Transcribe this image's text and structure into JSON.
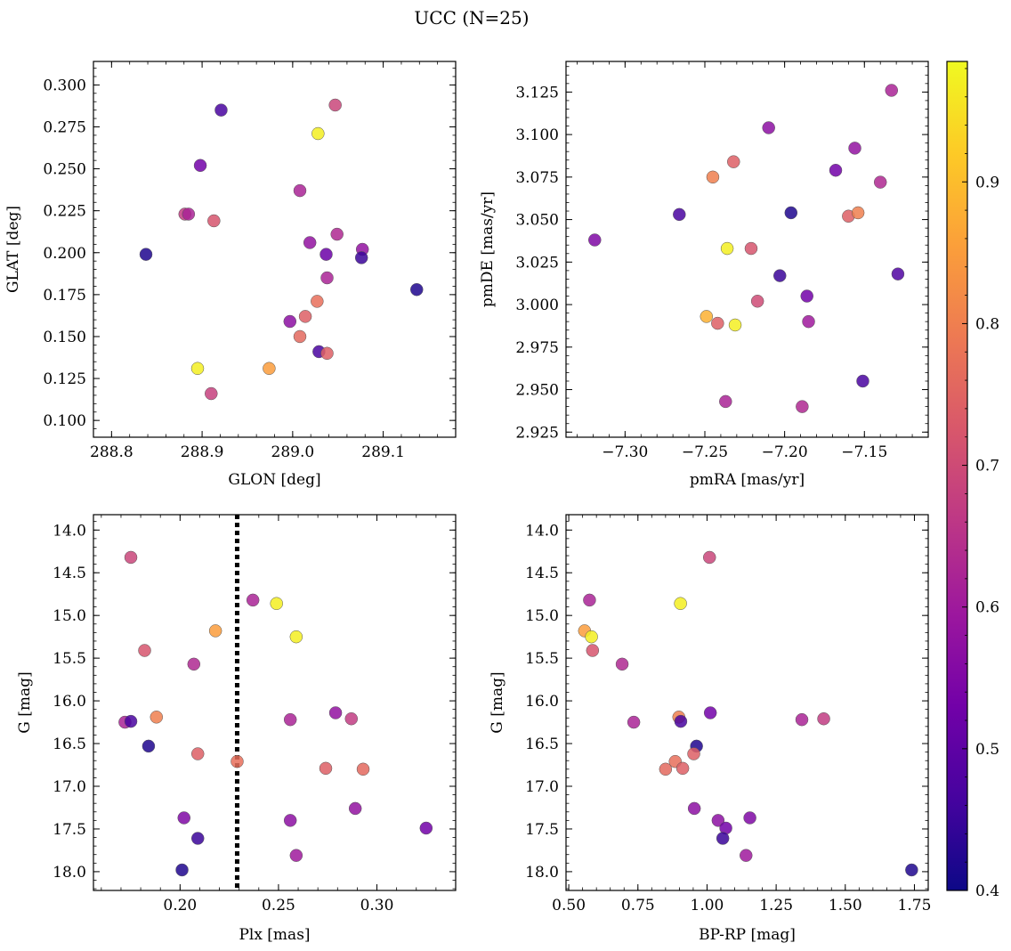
{
  "figure": {
    "title": "UCC (N=25)"
  },
  "colorbar": {
    "vmin": 0.4,
    "vmax": 0.985,
    "ticks": [
      0.4,
      0.5,
      0.6,
      0.7,
      0.8,
      0.9
    ],
    "tick_labels": [
      "0.4",
      "0.5",
      "0.6",
      "0.7",
      "0.8",
      "0.9"
    ],
    "colormap": [
      "#0d0887",
      "#46039f",
      "#7201a8",
      "#9c179e",
      "#bd3786",
      "#d8576b",
      "#ed7953",
      "#fb9f3a",
      "#fdca26",
      "#f0f921"
    ]
  },
  "chart_data": [
    {
      "type": "scatter",
      "xlabel": "GLON [deg]",
      "ylabel": "GLAT [deg]",
      "xlim": [
        288.78,
        289.18
      ],
      "ylim": [
        0.09,
        0.314
      ],
      "xticks": [
        288.8,
        288.9,
        289.0,
        289.1
      ],
      "xtick_labels": [
        "288.8",
        "288.9",
        "289.0",
        "289.1"
      ],
      "yticks": [
        0.1,
        0.125,
        0.15,
        0.175,
        0.2,
        0.225,
        0.25,
        0.275,
        0.3
      ],
      "ytick_labels": [
        "0.100",
        "0.125",
        "0.150",
        "0.175",
        "0.200",
        "0.225",
        "0.250",
        "0.275",
        "0.300"
      ],
      "points": [
        {
          "x": 288.838,
          "y": 0.199,
          "c": 0.42
        },
        {
          "x": 288.921,
          "y": 0.285,
          "c": 0.47
        },
        {
          "x": 289.047,
          "y": 0.288,
          "c": 0.69
        },
        {
          "x": 289.028,
          "y": 0.271,
          "c": 0.97
        },
        {
          "x": 288.898,
          "y": 0.252,
          "c": 0.53
        },
        {
          "x": 289.008,
          "y": 0.237,
          "c": 0.62
        },
        {
          "x": 288.881,
          "y": 0.223,
          "c": 0.67
        },
        {
          "x": 288.885,
          "y": 0.223,
          "c": 0.62
        },
        {
          "x": 288.913,
          "y": 0.219,
          "c": 0.72
        },
        {
          "x": 289.019,
          "y": 0.206,
          "c": 0.58
        },
        {
          "x": 289.049,
          "y": 0.211,
          "c": 0.63
        },
        {
          "x": 289.077,
          "y": 0.202,
          "c": 0.58
        },
        {
          "x": 289.037,
          "y": 0.199,
          "c": 0.52
        },
        {
          "x": 289.076,
          "y": 0.197,
          "c": 0.45
        },
        {
          "x": 289.137,
          "y": 0.178,
          "c": 0.42
        },
        {
          "x": 289.038,
          "y": 0.185,
          "c": 0.62
        },
        {
          "x": 289.027,
          "y": 0.171,
          "c": 0.77
        },
        {
          "x": 289.014,
          "y": 0.162,
          "c": 0.74
        },
        {
          "x": 288.997,
          "y": 0.159,
          "c": 0.57
        },
        {
          "x": 289.008,
          "y": 0.15,
          "c": 0.76
        },
        {
          "x": 289.029,
          "y": 0.141,
          "c": 0.47
        },
        {
          "x": 289.038,
          "y": 0.14,
          "c": 0.74
        },
        {
          "x": 288.895,
          "y": 0.131,
          "c": 0.97
        },
        {
          "x": 288.974,
          "y": 0.131,
          "c": 0.85
        },
        {
          "x": 288.91,
          "y": 0.116,
          "c": 0.68
        }
      ]
    },
    {
      "type": "scatter",
      "xlabel": "pmRA [mas/yr]",
      "ylabel": "pmDE [mas/yr]",
      "xlim": [
        -7.337,
        -7.11
      ],
      "ylim": [
        2.922,
        3.143
      ],
      "xticks": [
        -7.3,
        -7.25,
        -7.2,
        -7.15
      ],
      "xtick_labels": [
        "−7.30",
        "−7.25",
        "−7.20",
        "−7.15"
      ],
      "yticks": [
        2.925,
        2.95,
        2.975,
        3.0,
        3.025,
        3.05,
        3.075,
        3.1,
        3.125
      ],
      "ytick_labels": [
        "2.925",
        "2.950",
        "2.975",
        "3.000",
        "3.025",
        "3.050",
        "3.075",
        "3.100",
        "3.125"
      ],
      "points": [
        {
          "x": -7.319,
          "y": 3.038,
          "c": 0.55
        },
        {
          "x": -7.266,
          "y": 3.053,
          "c": 0.47
        },
        {
          "x": -7.245,
          "y": 3.075,
          "c": 0.8
        },
        {
          "x": -7.232,
          "y": 3.084,
          "c": 0.74
        },
        {
          "x": -7.21,
          "y": 3.104,
          "c": 0.57
        },
        {
          "x": -7.196,
          "y": 3.054,
          "c": 0.42
        },
        {
          "x": -7.203,
          "y": 3.017,
          "c": 0.45
        },
        {
          "x": -7.168,
          "y": 3.079,
          "c": 0.53
        },
        {
          "x": -7.156,
          "y": 3.092,
          "c": 0.58
        },
        {
          "x": -7.133,
          "y": 3.126,
          "c": 0.62
        },
        {
          "x": -7.14,
          "y": 3.072,
          "c": 0.63
        },
        {
          "x": -7.16,
          "y": 3.052,
          "c": 0.74
        },
        {
          "x": -7.154,
          "y": 3.054,
          "c": 0.8
        },
        {
          "x": -7.129,
          "y": 3.018,
          "c": 0.48
        },
        {
          "x": -7.236,
          "y": 3.033,
          "c": 0.97
        },
        {
          "x": -7.221,
          "y": 3.033,
          "c": 0.72
        },
        {
          "x": -7.217,
          "y": 3.002,
          "c": 0.7
        },
        {
          "x": -7.186,
          "y": 3.005,
          "c": 0.53
        },
        {
          "x": -7.185,
          "y": 2.99,
          "c": 0.6
        },
        {
          "x": -7.249,
          "y": 2.993,
          "c": 0.88
        },
        {
          "x": -7.242,
          "y": 2.989,
          "c": 0.74
        },
        {
          "x": -7.231,
          "y": 2.988,
          "c": 0.97
        },
        {
          "x": -7.151,
          "y": 2.955,
          "c": 0.47
        },
        {
          "x": -7.237,
          "y": 2.943,
          "c": 0.62
        },
        {
          "x": -7.189,
          "y": 2.94,
          "c": 0.63
        }
      ]
    },
    {
      "type": "scatter",
      "xlabel": "Plx [mas]",
      "ylabel": "G [mag]",
      "xlim": [
        0.156,
        0.34
      ],
      "ylim": [
        18.22,
        13.82
      ],
      "xticks": [
        0.2,
        0.25,
        0.3
      ],
      "xtick_labels": [
        "0.20",
        "0.25",
        "0.30"
      ],
      "yticks": [
        14.0,
        14.5,
        15.0,
        15.5,
        16.0,
        16.5,
        17.0,
        17.5,
        18.0
      ],
      "ytick_labels": [
        "14.0",
        "14.5",
        "15.0",
        "15.5",
        "16.0",
        "16.5",
        "17.0",
        "17.5",
        "18.0"
      ],
      "vline": 0.229,
      "points": [
        {
          "x": 0.175,
          "y": 14.32,
          "c": 0.69
        },
        {
          "x": 0.237,
          "y": 14.82,
          "c": 0.62
        },
        {
          "x": 0.249,
          "y": 14.86,
          "c": 0.97
        },
        {
          "x": 0.218,
          "y": 15.18,
          "c": 0.85
        },
        {
          "x": 0.259,
          "y": 15.25,
          "c": 0.97
        },
        {
          "x": 0.182,
          "y": 15.41,
          "c": 0.72
        },
        {
          "x": 0.207,
          "y": 15.57,
          "c": 0.63
        },
        {
          "x": 0.279,
          "y": 16.14,
          "c": 0.58
        },
        {
          "x": 0.188,
          "y": 16.19,
          "c": 0.8
        },
        {
          "x": 0.287,
          "y": 16.21,
          "c": 0.67
        },
        {
          "x": 0.256,
          "y": 16.22,
          "c": 0.62
        },
        {
          "x": 0.172,
          "y": 16.25,
          "c": 0.62
        },
        {
          "x": 0.175,
          "y": 16.24,
          "c": 0.47
        },
        {
          "x": 0.184,
          "y": 16.53,
          "c": 0.42
        },
        {
          "x": 0.209,
          "y": 16.62,
          "c": 0.74
        },
        {
          "x": 0.229,
          "y": 16.71,
          "c": 0.77
        },
        {
          "x": 0.274,
          "y": 16.79,
          "c": 0.74
        },
        {
          "x": 0.293,
          "y": 16.8,
          "c": 0.76
        },
        {
          "x": 0.289,
          "y": 17.26,
          "c": 0.58
        },
        {
          "x": 0.202,
          "y": 17.37,
          "c": 0.55
        },
        {
          "x": 0.256,
          "y": 17.4,
          "c": 0.57
        },
        {
          "x": 0.325,
          "y": 17.49,
          "c": 0.53
        },
        {
          "x": 0.209,
          "y": 17.61,
          "c": 0.45
        },
        {
          "x": 0.259,
          "y": 17.81,
          "c": 0.6
        },
        {
          "x": 0.201,
          "y": 17.98,
          "c": 0.42
        }
      ]
    },
    {
      "type": "scatter",
      "xlabel": "BP-RP [mag]",
      "ylabel": "G [mag]",
      "xlim": [
        0.49,
        1.8
      ],
      "ylim": [
        18.22,
        13.82
      ],
      "xticks": [
        0.5,
        0.75,
        1.0,
        1.25,
        1.5,
        1.75
      ],
      "xtick_labels": [
        "0.50",
        "0.75",
        "1.00",
        "1.25",
        "1.50",
        "1.75"
      ],
      "yticks": [
        14.0,
        14.5,
        15.0,
        15.5,
        16.0,
        16.5,
        17.0,
        17.5,
        18.0
      ],
      "ytick_labels": [
        "14.0",
        "14.5",
        "15.0",
        "15.5",
        "16.0",
        "16.5",
        "17.0",
        "17.5",
        "18.0"
      ],
      "points": [
        {
          "x": 1.009,
          "y": 14.32,
          "c": 0.69
        },
        {
          "x": 0.575,
          "y": 14.82,
          "c": 0.62
        },
        {
          "x": 0.904,
          "y": 14.86,
          "c": 0.97
        },
        {
          "x": 0.557,
          "y": 15.18,
          "c": 0.85
        },
        {
          "x": 0.582,
          "y": 15.25,
          "c": 0.97
        },
        {
          "x": 0.586,
          "y": 15.41,
          "c": 0.72
        },
        {
          "x": 0.693,
          "y": 15.57,
          "c": 0.63
        },
        {
          "x": 1.012,
          "y": 16.14,
          "c": 0.53
        },
        {
          "x": 0.898,
          "y": 16.19,
          "c": 0.8
        },
        {
          "x": 1.422,
          "y": 16.21,
          "c": 0.67
        },
        {
          "x": 1.343,
          "y": 16.22,
          "c": 0.62
        },
        {
          "x": 0.735,
          "y": 16.25,
          "c": 0.62
        },
        {
          "x": 0.905,
          "y": 16.24,
          "c": 0.47
        },
        {
          "x": 0.962,
          "y": 16.53,
          "c": 0.42
        },
        {
          "x": 0.952,
          "y": 16.62,
          "c": 0.74
        },
        {
          "x": 0.885,
          "y": 16.71,
          "c": 0.77
        },
        {
          "x": 0.912,
          "y": 16.79,
          "c": 0.74
        },
        {
          "x": 0.85,
          "y": 16.8,
          "c": 0.76
        },
        {
          "x": 0.954,
          "y": 17.26,
          "c": 0.57
        },
        {
          "x": 1.04,
          "y": 17.4,
          "c": 0.57
        },
        {
          "x": 1.155,
          "y": 17.37,
          "c": 0.55
        },
        {
          "x": 1.068,
          "y": 17.49,
          "c": 0.53
        },
        {
          "x": 1.057,
          "y": 17.61,
          "c": 0.45
        },
        {
          "x": 1.141,
          "y": 17.81,
          "c": 0.6
        },
        {
          "x": 1.74,
          "y": 17.98,
          "c": 0.42
        }
      ]
    }
  ]
}
